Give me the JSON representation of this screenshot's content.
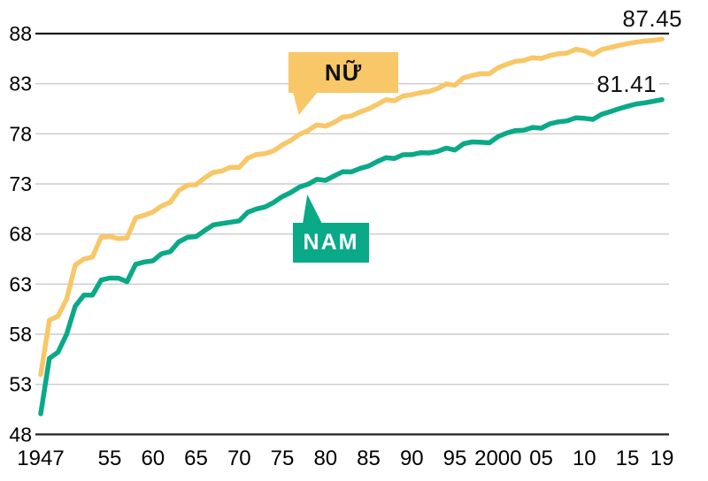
{
  "chart_data": {
    "type": "line",
    "x": [
      1947,
      1948,
      1949,
      1950,
      1951,
      1952,
      1953,
      1954,
      1955,
      1956,
      1957,
      1958,
      1959,
      1960,
      1961,
      1962,
      1963,
      1964,
      1965,
      1966,
      1967,
      1968,
      1969,
      1970,
      1971,
      1972,
      1973,
      1974,
      1975,
      1976,
      1977,
      1978,
      1979,
      1980,
      1981,
      1982,
      1983,
      1984,
      1985,
      1986,
      1987,
      1988,
      1989,
      1990,
      1991,
      1992,
      1993,
      1994,
      1995,
      1996,
      1997,
      1998,
      1999,
      2000,
      2001,
      2002,
      2003,
      2004,
      2005,
      2006,
      2007,
      2008,
      2009,
      2010,
      2011,
      2012,
      2013,
      2014,
      2015,
      2016,
      2017,
      2018,
      2019
    ],
    "x_tick_years": [
      1947,
      1955,
      1960,
      1965,
      1970,
      1975,
      1980,
      1985,
      1990,
      1995,
      2000,
      2005,
      2010,
      2015,
      2019
    ],
    "x_tick_labels": [
      "1947",
      "55",
      "60",
      "65",
      "70",
      "75",
      "80",
      "85",
      "90",
      "95",
      "2000",
      "05",
      "10",
      "15",
      "19"
    ],
    "y_ticks": [
      48,
      53,
      58,
      63,
      68,
      73,
      78,
      83,
      88
    ],
    "y_tick_labels": [
      "48",
      "53",
      "58",
      "63",
      "68",
      "73",
      "78",
      "83",
      "88"
    ],
    "xlim": [
      1947,
      2019
    ],
    "ylim": [
      48,
      88
    ],
    "grid": true,
    "legend_position": "inline-callouts",
    "series": [
      {
        "name": "NỮ",
        "color": "#F8C768",
        "end_label": "87.45",
        "values": [
          53.96,
          59.4,
          59.8,
          61.5,
          64.9,
          65.5,
          65.7,
          67.69,
          67.75,
          67.54,
          67.6,
          69.61,
          69.88,
          70.19,
          70.79,
          71.16,
          72.34,
          72.87,
          72.92,
          73.61,
          74.15,
          74.3,
          74.67,
          74.66,
          75.58,
          75.94,
          76.02,
          76.31,
          76.89,
          77.35,
          77.95,
          78.33,
          78.89,
          78.76,
          79.13,
          79.66,
          79.78,
          80.18,
          80.48,
          80.93,
          81.39,
          81.3,
          81.77,
          81.9,
          82.11,
          82.22,
          82.51,
          82.98,
          82.85,
          83.59,
          83.82,
          84.01,
          83.99,
          84.6,
          84.93,
          85.23,
          85.33,
          85.59,
          85.52,
          85.81,
          85.99,
          86.05,
          86.44,
          86.3,
          85.9,
          86.41,
          86.61,
          86.83,
          86.99,
          87.14,
          87.26,
          87.32,
          87.45
        ]
      },
      {
        "name": "NAM",
        "color": "#0AA987",
        "end_label": "81.41",
        "values": [
          50.06,
          55.6,
          56.2,
          58.0,
          60.8,
          61.9,
          61.9,
          63.41,
          63.6,
          63.59,
          63.24,
          64.98,
          65.21,
          65.32,
          66.03,
          66.23,
          67.21,
          67.67,
          67.74,
          68.35,
          68.91,
          69.05,
          69.18,
          69.31,
          70.17,
          70.5,
          70.7,
          71.16,
          71.73,
          72.15,
          72.69,
          72.97,
          73.46,
          73.35,
          73.79,
          74.22,
          74.2,
          74.54,
          74.78,
          75.23,
          75.61,
          75.54,
          75.91,
          75.92,
          76.11,
          76.09,
          76.25,
          76.57,
          76.38,
          77.01,
          77.19,
          77.16,
          77.1,
          77.72,
          78.07,
          78.32,
          78.36,
          78.64,
          78.56,
          79.0,
          79.19,
          79.29,
          79.59,
          79.55,
          79.44,
          79.94,
          80.21,
          80.5,
          80.75,
          80.98,
          81.09,
          81.25,
          81.41
        ]
      }
    ]
  },
  "colors": {
    "female": "#F8C768",
    "male": "#0AA987",
    "grid": "#CBCBCB",
    "axis_top": "#1A1A1A",
    "axis_bottom": "#2E2E2E",
    "text": "#000000",
    "background": "#FFFFFF"
  }
}
